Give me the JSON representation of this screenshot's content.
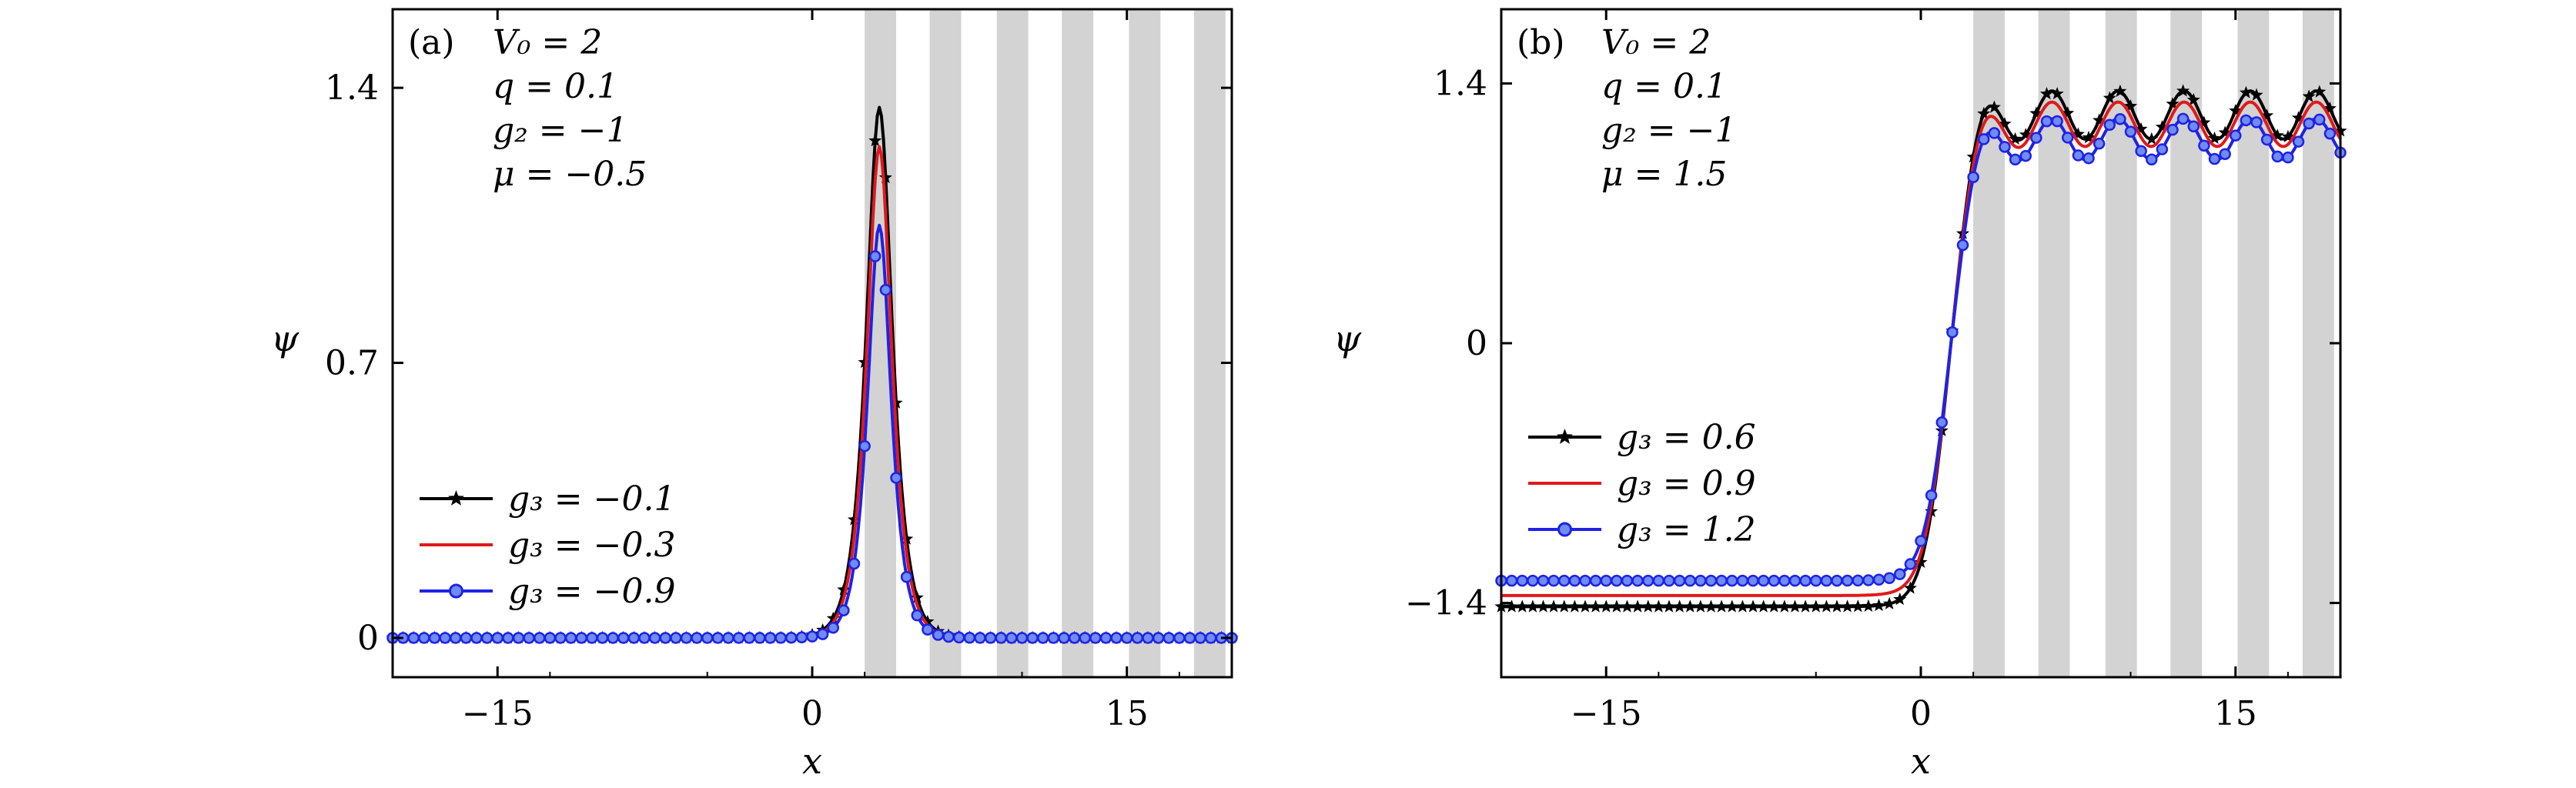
{
  "colors": {
    "band": "#d3d3d3",
    "black_series": "#000000",
    "red_series": "#e0191b",
    "blue_series": "#1f22e6",
    "blue_fill": "#6f8cf2"
  },
  "chart_data": [
    {
      "panel_label": "(a)",
      "type": "line",
      "xlabel": "x",
      "ylabel": "ψ",
      "xlim": [
        -20,
        20
      ],
      "ylim": [
        -0.1,
        1.6
      ],
      "xticks": [
        -15,
        0,
        15
      ],
      "xtick_labels": [
        "−15",
        "0",
        "15"
      ],
      "yticks": [
        0,
        0.7,
        1.4
      ],
      "ytick_labels": [
        "0",
        "0.7",
        "1.4"
      ],
      "annotations": [
        "V₀ = 2",
        "q = 0.1",
        "g₂ = −1",
        "μ = −0.5"
      ],
      "shaded_bands": [
        [
          2.5,
          4.0
        ],
        [
          5.6,
          7.1
        ],
        [
          8.8,
          10.3
        ],
        [
          11.9,
          13.4
        ],
        [
          15.1,
          16.6
        ],
        [
          18.2,
          19.7
        ]
      ],
      "legend_position": "lower-left",
      "series": [
        {
          "name": "g₃ = −0.1",
          "marker": "star",
          "peak": 1.35,
          "center": 3.2,
          "width": 0.55,
          "baseline": 0.0
        },
        {
          "name": "g₃ = −0.3",
          "marker": "none",
          "peak": 1.25,
          "center": 3.2,
          "width": 0.53,
          "baseline": 0.0
        },
        {
          "name": "g₃ = −0.9",
          "marker": "circle",
          "peak": 1.05,
          "center": 3.2,
          "width": 0.5,
          "baseline": 0.0
        }
      ]
    },
    {
      "panel_label": "(b)",
      "type": "line",
      "xlabel": "x",
      "ylabel": "ψ",
      "xlim": [
        -20,
        20
      ],
      "ylim": [
        -1.8,
        1.8
      ],
      "xticks": [
        -15,
        0,
        15
      ],
      "xtick_labels": [
        "−15",
        "0",
        "15"
      ],
      "yticks": [
        -1.4,
        0,
        1.4
      ],
      "ytick_labels": [
        "−1.4",
        "0",
        "1.4"
      ],
      "annotations": [
        "V₀ = 2",
        "q = 0.1",
        "g₂ = −1",
        "μ = 1.5"
      ],
      "shaded_bands": [
        [
          2.5,
          4.0
        ],
        [
          5.6,
          7.1
        ],
        [
          8.8,
          10.3
        ],
        [
          11.9,
          13.4
        ],
        [
          15.1,
          16.6
        ],
        [
          18.2,
          19.7
        ]
      ],
      "legend_position": "center-left",
      "series": [
        {
          "name": "g₃ = 0.6",
          "marker": "star",
          "low": -1.42,
          "high_mean": 1.23,
          "amp": 0.13,
          "rise_center": 1.3,
          "rise_width": 0.55
        },
        {
          "name": "g₃ = 0.9",
          "marker": "none",
          "low": -1.36,
          "high_mean": 1.18,
          "amp": 0.12,
          "rise_center": 1.3,
          "rise_width": 0.55
        },
        {
          "name": "g₃ = 1.2",
          "marker": "circle",
          "low": -1.28,
          "high_mean": 1.1,
          "amp": 0.11,
          "rise_center": 1.3,
          "rise_width": 0.55
        }
      ]
    }
  ]
}
